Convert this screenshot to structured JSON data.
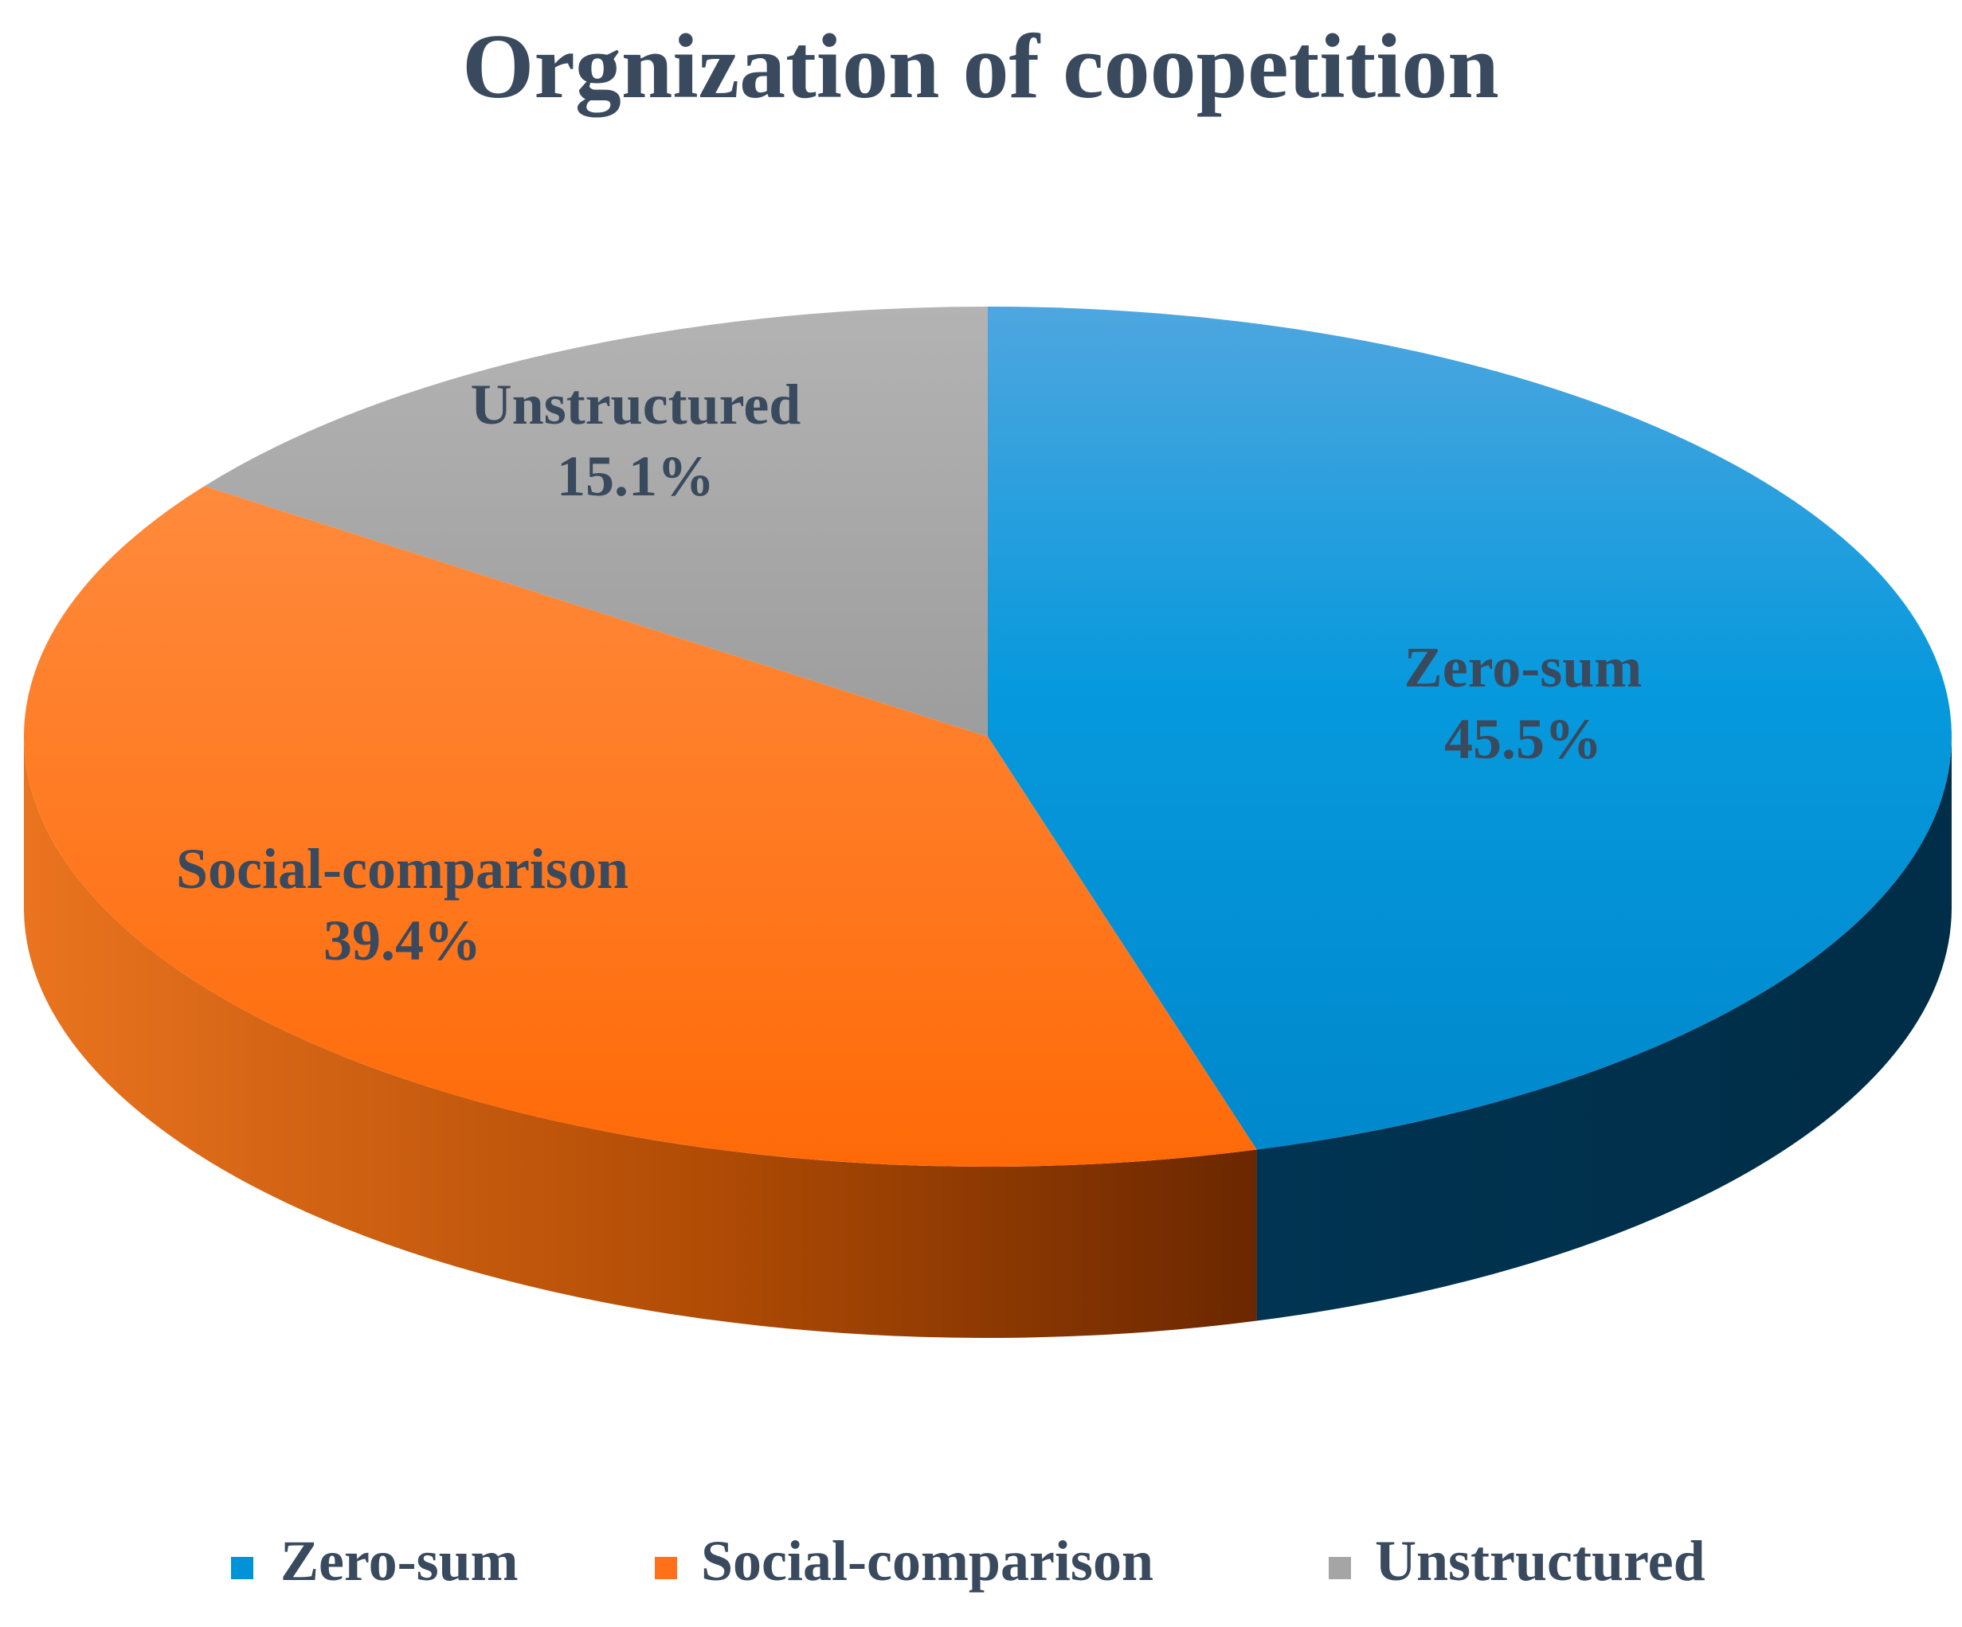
{
  "chart_data": {
    "type": "pie",
    "title": "Orgnization of coopetition",
    "legend_position": "bottom",
    "slices": [
      {
        "label": "Zero-sum",
        "value": 45.5,
        "value_label": "45.5%",
        "color": "#0093d8"
      },
      {
        "label": "Social-comparison",
        "value": 39.4,
        "value_label": "39.4%",
        "color": "#ff7018"
      },
      {
        "label": "Unstructured",
        "value": 15.1,
        "value_label": "15.1%",
        "color": "#a5a5a5"
      }
    ],
    "colors": {
      "zero_sum_side": "#003150",
      "social_side_dark": "#6e2a00",
      "social_side_light": "#e8701e",
      "text": "#3a4a5e"
    }
  }
}
